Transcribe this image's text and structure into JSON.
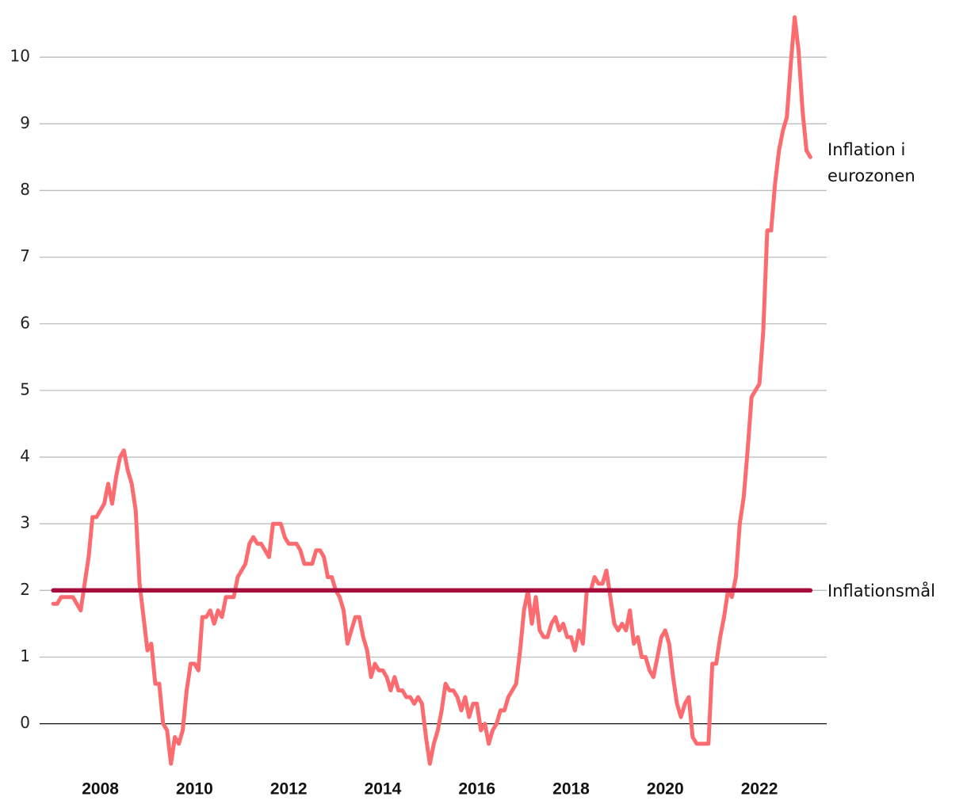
{
  "chart_data": {
    "type": "line",
    "xlim": [
      2006.71,
      2023.43
    ],
    "xticks": [
      2008,
      2010,
      2012,
      2014,
      2016,
      2018,
      2020,
      2022
    ],
    "ylim": [
      -0.67,
      10.62
    ],
    "yticks": [
      0,
      1,
      2,
      3,
      4,
      5,
      6,
      7,
      8,
      9,
      10
    ],
    "grid": true,
    "series": [
      {
        "name": "Inflation i eurozonen",
        "color": "#fb6b6f",
        "x": [
          2007,
          2007.083,
          2007.167,
          2007.25,
          2007.333,
          2007.417,
          2007.5,
          2007.583,
          2007.667,
          2007.75,
          2007.833,
          2007.917,
          2008,
          2008.083,
          2008.167,
          2008.25,
          2008.333,
          2008.417,
          2008.5,
          2008.583,
          2008.667,
          2008.75,
          2008.833,
          2008.917,
          2009,
          2009.083,
          2009.167,
          2009.25,
          2009.333,
          2009.417,
          2009.5,
          2009.583,
          2009.667,
          2009.75,
          2009.833,
          2009.917,
          2010,
          2010.083,
          2010.167,
          2010.25,
          2010.333,
          2010.417,
          2010.5,
          2010.583,
          2010.667,
          2010.75,
          2010.833,
          2010.917,
          2011,
          2011.083,
          2011.167,
          2011.25,
          2011.333,
          2011.417,
          2011.5,
          2011.583,
          2011.667,
          2011.75,
          2011.833,
          2011.917,
          2012,
          2012.083,
          2012.167,
          2012.25,
          2012.333,
          2012.417,
          2012.5,
          2012.583,
          2012.667,
          2012.75,
          2012.833,
          2012.917,
          2013,
          2013.083,
          2013.167,
          2013.25,
          2013.333,
          2013.417,
          2013.5,
          2013.583,
          2013.667,
          2013.75,
          2013.833,
          2013.917,
          2014,
          2014.083,
          2014.167,
          2014.25,
          2014.333,
          2014.417,
          2014.5,
          2014.583,
          2014.667,
          2014.75,
          2014.833,
          2014.917,
          2015,
          2015.083,
          2015.167,
          2015.25,
          2015.333,
          2015.417,
          2015.5,
          2015.583,
          2015.667,
          2015.75,
          2015.833,
          2015.917,
          2016,
          2016.083,
          2016.167,
          2016.25,
          2016.333,
          2016.417,
          2016.5,
          2016.583,
          2016.667,
          2016.75,
          2016.833,
          2016.917,
          2017,
          2017.083,
          2017.167,
          2017.25,
          2017.333,
          2017.417,
          2017.5,
          2017.583,
          2017.667,
          2017.75,
          2017.833,
          2017.917,
          2018,
          2018.083,
          2018.167,
          2018.25,
          2018.333,
          2018.417,
          2018.5,
          2018.583,
          2018.667,
          2018.75,
          2018.833,
          2018.917,
          2019,
          2019.083,
          2019.167,
          2019.25,
          2019.333,
          2019.417,
          2019.5,
          2019.583,
          2019.667,
          2019.75,
          2019.833,
          2019.917,
          2020,
          2020.083,
          2020.167,
          2020.25,
          2020.333,
          2020.417,
          2020.5,
          2020.583,
          2020.667,
          2020.75,
          2020.833,
          2020.917,
          2021,
          2021.083,
          2021.167,
          2021.25,
          2021.333,
          2021.417,
          2021.5,
          2021.583,
          2021.667,
          2021.75,
          2021.833,
          2021.917,
          2022,
          2022.083,
          2022.167,
          2022.25,
          2022.333,
          2022.417,
          2022.5,
          2022.583,
          2022.667,
          2022.75,
          2022.833,
          2022.917,
          2023,
          2023.083
        ],
        "values": [
          1.8,
          1.8,
          1.9,
          1.9,
          1.9,
          1.9,
          1.8,
          1.7,
          2.1,
          2.5,
          3.1,
          3.1,
          3.2,
          3.3,
          3.6,
          3.3,
          3.7,
          4.0,
          4.1,
          3.8,
          3.6,
          3.2,
          2.1,
          1.6,
          1.1,
          1.2,
          0.6,
          0.6,
          0.0,
          -0.1,
          -0.6,
          -0.2,
          -0.3,
          -0.1,
          0.5,
          0.9,
          0.9,
          0.8,
          1.6,
          1.6,
          1.7,
          1.5,
          1.7,
          1.6,
          1.9,
          1.9,
          1.9,
          2.2,
          2.3,
          2.4,
          2.7,
          2.8,
          2.7,
          2.7,
          2.6,
          2.5,
          3.0,
          3.0,
          3.0,
          2.8,
          2.7,
          2.7,
          2.7,
          2.6,
          2.4,
          2.4,
          2.4,
          2.6,
          2.6,
          2.5,
          2.2,
          2.2,
          2.0,
          1.9,
          1.7,
          1.2,
          1.4,
          1.6,
          1.6,
          1.3,
          1.1,
          0.7,
          0.9,
          0.8,
          0.8,
          0.7,
          0.5,
          0.7,
          0.5,
          0.5,
          0.4,
          0.4,
          0.3,
          0.4,
          0.3,
          -0.2,
          -0.6,
          -0.3,
          -0.1,
          0.2,
          0.6,
          0.5,
          0.5,
          0.4,
          0.2,
          0.4,
          0.1,
          0.3,
          0.3,
          -0.1,
          0.0,
          -0.3,
          -0.1,
          0.0,
          0.2,
          0.2,
          0.4,
          0.5,
          0.6,
          1.1,
          1.7,
          2.0,
          1.5,
          1.9,
          1.4,
          1.3,
          1.3,
          1.5,
          1.6,
          1.4,
          1.5,
          1.3,
          1.3,
          1.1,
          1.4,
          1.2,
          2.0,
          2.0,
          2.2,
          2.1,
          2.1,
          2.3,
          1.9,
          1.5,
          1.4,
          1.5,
          1.4,
          1.7,
          1.2,
          1.3,
          1.0,
          1.0,
          0.8,
          0.7,
          1.0,
          1.3,
          1.4,
          1.2,
          0.7,
          0.3,
          0.1,
          0.3,
          0.4,
          -0.2,
          -0.3,
          -0.3,
          -0.3,
          -0.3,
          0.9,
          0.9,
          1.3,
          1.6,
          2.0,
          1.9,
          2.2,
          3.0,
          3.4,
          4.1,
          4.9,
          5.0,
          5.1,
          5.9,
          7.4,
          7.4,
          8.1,
          8.6,
          8.9,
          9.1,
          9.9,
          10.6,
          10.1,
          9.2,
          8.6,
          8.5
        ]
      },
      {
        "name": "Inflationsmål",
        "color": "#a50d3a",
        "x": [
          2007,
          2023.083
        ],
        "values": [
          2,
          2
        ]
      }
    ]
  }
}
